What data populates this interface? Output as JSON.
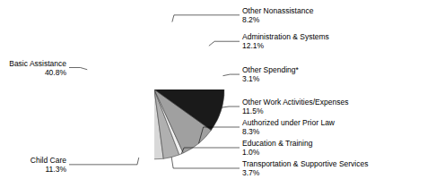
{
  "chart_data": {
    "type": "pie",
    "categories": [
      "Basic Assistance",
      "Child Care",
      "Transportation & Supportive Services",
      "Education & Training",
      "Authorized under Prior Law",
      "Other Work Activities/Expenses",
      "Other Spending*",
      "Administration & Systems",
      "Other Nonassistance"
    ],
    "values": [
      40.8,
      11.3,
      3.7,
      1.0,
      8.3,
      11.5,
      3.1,
      12.1,
      8.2
    ],
    "value_labels": [
      "40.8%",
      "11.3%",
      "3.7%",
      "1.0%",
      "8.3%",
      "11.5%",
      "3.1%",
      "12.1%",
      "8.2%"
    ],
    "data_labels": true,
    "colors": [
      "#c8c8c8",
      "#d8d8d8",
      "#b0b0b0",
      "#f0f0f0",
      "#a0a0a0",
      "#1a1a1a",
      "#888888",
      "#909090",
      "#555555"
    ]
  }
}
